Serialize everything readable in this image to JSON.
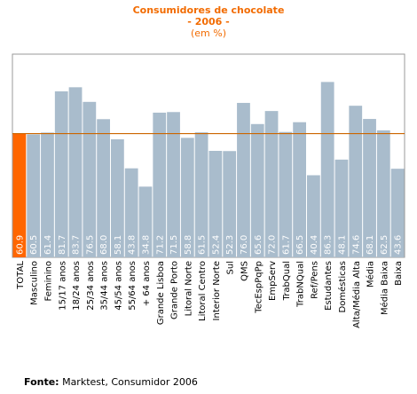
{
  "chart_data": {
    "type": "bar",
    "title": "Consumidores de chocolate",
    "subtitle": "- 2006 -",
    "unit_note": "(em %)",
    "categories": [
      "TOTAL",
      "Masculino",
      "Feminino",
      "15/17 anos",
      "18/24 anos",
      "25/34 anos",
      "35/44 anos",
      "45/54 anos",
      "55/64 anos",
      "+ 64 anos",
      "Grande Lisboa",
      "Grande Porto",
      "Litoral Norte",
      "Litoral Centro",
      "Interior Norte",
      "Sul",
      "QMS",
      "TecEspPqPp",
      "EmpServ",
      "TrabQual",
      "TrabNQual",
      "Ref/Pens",
      "Estudantes",
      "Domésticas",
      "Alta/Média Alta",
      "Média",
      "Média Baixa",
      "Baixa"
    ],
    "values": [
      60.9,
      60.5,
      61.4,
      81.7,
      83.7,
      76.5,
      68.0,
      58.1,
      43.8,
      34.8,
      71.2,
      71.5,
      58.8,
      61.5,
      52.4,
      52.3,
      76.0,
      65.6,
      72.0,
      61.7,
      66.5,
      40.4,
      86.3,
      48.1,
      74.6,
      68.1,
      62.5,
      43.6
    ],
    "value_labels": [
      "60.9",
      "60.5",
      "61.4",
      "81.7",
      "83.7",
      "76.5",
      "68.0",
      "58.1",
      "43.8",
      "34.8",
      "71.2",
      "71.5",
      "58.8",
      "61.5",
      "52.4",
      "52.3",
      "76.0",
      "65.6",
      "72.0",
      "61.7",
      "66.5",
      "40.4",
      "86.3",
      "48.1",
      "74.6",
      "68.1",
      "62.5",
      "43.6"
    ],
    "reference_line": 60.9,
    "ylim": [
      0,
      100
    ],
    "colors": {
      "highlight_bar": "#ff6600",
      "bar": "#a9bccc",
      "reference_line": "#cc6600",
      "plot_background": "#ffffff",
      "frame": "#999999",
      "title": "#f26b00"
    },
    "grid": false,
    "legend": "none"
  },
  "source": {
    "label": "Fonte:",
    "text": " Marktest, Consumidor 2006"
  }
}
